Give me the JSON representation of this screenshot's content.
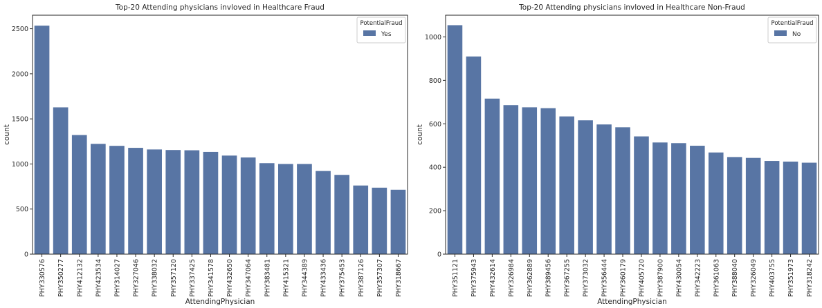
{
  "chart_data": [
    {
      "type": "bar",
      "title": "Top-20 Attending physicians invloved in Healthcare Fraud",
      "xlabel": "AttendingPhysician",
      "ylabel": "count",
      "ylim": [
        0,
        2650
      ],
      "yticks": [
        0,
        500,
        1000,
        1500,
        2000,
        2500
      ],
      "grid": false,
      "legend": {
        "title": "PotentialFraud",
        "placement": "top-right",
        "entries": [
          "Yes"
        ]
      },
      "bar_color": "#5875a4",
      "categories": [
        "PHY330576",
        "PHY350277",
        "PHY412132",
        "PHY423534",
        "PHY314027",
        "PHY327046",
        "PHY338032",
        "PHY357120",
        "PHY337425",
        "PHY341578",
        "PHY432650",
        "PHY347064",
        "PHY383481",
        "PHY415321",
        "PHY344389",
        "PHY433436",
        "PHY375453",
        "PHY387126",
        "PHY357307",
        "PHY318667"
      ],
      "series": [
        {
          "name": "Yes",
          "values": [
            2534,
            1628,
            1321,
            1223,
            1201,
            1179,
            1161,
            1155,
            1152,
            1134,
            1093,
            1072,
            1009,
            1000,
            1000,
            922,
            879,
            761,
            737,
            714
          ]
        }
      ]
    },
    {
      "type": "bar",
      "title": "Top-20 Attending physicians invloved in Healthcare Non-Fraud",
      "xlabel": "AttendingPhysician",
      "ylabel": "count",
      "ylim": [
        0,
        1100
      ],
      "yticks": [
        0,
        200,
        400,
        600,
        800,
        1000
      ],
      "grid": false,
      "legend": {
        "title": "PotentialFraud",
        "placement": "top-right",
        "entries": [
          "No"
        ]
      },
      "bar_color": "#5875a4",
      "categories": [
        "PHY351121",
        "PHY375943",
        "PHY432614",
        "PHY326984",
        "PHY362889",
        "PHY389456",
        "PHY367255",
        "PHY373032",
        "PHY356444",
        "PHY360179",
        "PHY405720",
        "PHY387900",
        "PHY430054",
        "PHY342223",
        "PHY361063",
        "PHY388040",
        "PHY326049",
        "PHY403755",
        "PHY351973",
        "PHY318242"
      ],
      "series": [
        {
          "name": "No",
          "values": [
            1054,
            910,
            716,
            686,
            676,
            672,
            634,
            616,
            597,
            584,
            542,
            514,
            511,
            499,
            468,
            447,
            443,
            429,
            426,
            421
          ]
        }
      ]
    }
  ]
}
